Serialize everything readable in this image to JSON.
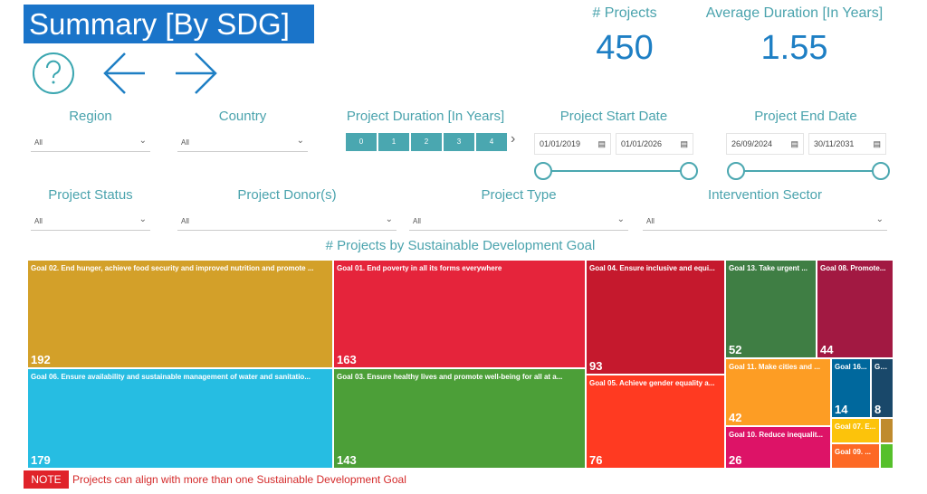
{
  "header": {
    "title": "Summary [By SDG]"
  },
  "kpis": {
    "projects_label": "# Projects",
    "projects_value": "450",
    "duration_label": "Average Duration [In Years]",
    "duration_value": "1.55"
  },
  "icons": [
    "help-icon",
    "arrow-left-icon",
    "arrow-right-icon"
  ],
  "filters": {
    "region": {
      "label": "Region",
      "value": "All"
    },
    "country": {
      "label": "Country",
      "value": "All"
    },
    "duration": {
      "label": "Project Duration [In Years]",
      "options": [
        "0",
        "1",
        "2",
        "3",
        "4"
      ]
    },
    "start_date": {
      "label": "Project Start Date",
      "from": "01/01/2019",
      "to": "01/01/2026"
    },
    "end_date": {
      "label": "Project End Date",
      "from": "26/09/2024",
      "to": "30/11/2031"
    },
    "status": {
      "label": "Project Status",
      "value": "All"
    },
    "donor": {
      "label": "Project Donor(s)",
      "value": "All"
    },
    "type": {
      "label": "Project Type",
      "value": "All"
    },
    "sector": {
      "label": "Intervention Sector",
      "value": "All"
    }
  },
  "chart_data": {
    "type": "treemap",
    "title": "# Projects by Sustainable Development Goal",
    "items": [
      {
        "label": "Goal 02. End hunger, achieve food security and improved nutrition and promote ...",
        "value": 192,
        "color": "#d3a029"
      },
      {
        "label": "Goal 06. Ensure availability and sustainable management of water and sanitatio...",
        "value": 179,
        "color": "#26bde2"
      },
      {
        "label": "Goal 01. End poverty in all its forms everywhere",
        "value": 163,
        "color": "#e5243b"
      },
      {
        "label": "Goal 03. Ensure healthy lives and promote well-being for all at a...",
        "value": 143,
        "color": "#4c9f38"
      },
      {
        "label": "Goal 04. Ensure inclusive and equi...",
        "value": 93,
        "color": "#c5192d"
      },
      {
        "label": "Goal 05. Achieve gender equality a...",
        "value": 76,
        "color": "#ff3a21"
      },
      {
        "label": "Goal 13. Take urgent ...",
        "value": 52,
        "color": "#3f7e44"
      },
      {
        "label": "Goal 08. Promote...",
        "value": 44,
        "color": "#a21942"
      },
      {
        "label": "Goal 11. Make cities and ...",
        "value": 42,
        "color": "#fd9d24"
      },
      {
        "label": "Goal 10. Reduce inequalit...",
        "value": 26,
        "color": "#dd1367"
      },
      {
        "label": "Goal 16...",
        "value": 14,
        "color": "#00689d"
      },
      {
        "label": "Go...",
        "value": 8,
        "color": "#19486a"
      },
      {
        "label": "Goal 07. E...",
        "value": null,
        "color": "#fcc30b"
      },
      {
        "label": "",
        "value": null,
        "color": "#bf8b2e"
      },
      {
        "label": "Goal 09. ...",
        "value": null,
        "color": "#fd6925"
      },
      {
        "label": "",
        "value": null,
        "color": "#56c02b"
      }
    ]
  },
  "note": {
    "tag": "NOTE",
    "text": "Projects can align with more than one Sustainable Development Goal"
  }
}
